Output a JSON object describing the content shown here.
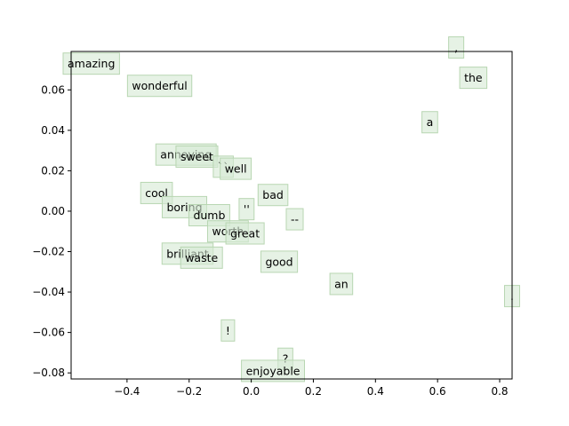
{
  "chart_data": {
    "type": "scatter",
    "title": "",
    "xlabel": "",
    "ylabel": "",
    "xlim": [
      -0.58,
      0.84
    ],
    "ylim": [
      -0.083,
      0.079
    ],
    "xticks": [
      "−0.4",
      "−0.2",
      "0.0",
      "0.2",
      "0.4",
      "0.6",
      "0.8"
    ],
    "xtick_values": [
      -0.4,
      -0.2,
      0.0,
      0.2,
      0.4,
      0.6,
      0.8
    ],
    "yticks": [
      "−0.08",
      "−0.06",
      "−0.04",
      "−0.02",
      "0.00",
      "0.02",
      "0.04",
      "0.06"
    ],
    "ytick_values": [
      -0.08,
      -0.06,
      -0.04,
      -0.02,
      0.0,
      0.02,
      0.04,
      0.06
    ],
    "grid": false,
    "box_color": "#d6ead3",
    "points": [
      {
        "label": "amazing",
        "x": -0.515,
        "y": 0.073
      },
      {
        "label": "wonderful",
        "x": -0.295,
        "y": 0.062
      },
      {
        "label": ",",
        "x": 0.66,
        "y": 0.081
      },
      {
        "label": "the",
        "x": 0.715,
        "y": 0.066
      },
      {
        "label": "a",
        "x": 0.575,
        "y": 0.044
      },
      {
        "label": "annoying",
        "x": -0.21,
        "y": 0.028
      },
      {
        "label": "sweet",
        "x": -0.175,
        "y": 0.027
      },
      {
        "label": "``",
        "x": -0.09,
        "y": 0.022
      },
      {
        "label": "well",
        "x": -0.05,
        "y": 0.021
      },
      {
        "label": "cool",
        "x": -0.305,
        "y": 0.009
      },
      {
        "label": "bad",
        "x": 0.07,
        "y": 0.008
      },
      {
        "label": "boring",
        "x": -0.215,
        "y": 0.002
      },
      {
        "label": "''",
        "x": -0.015,
        "y": 0.001
      },
      {
        "label": "dumb",
        "x": -0.135,
        "y": -0.002
      },
      {
        "label": "--",
        "x": 0.14,
        "y": -0.004
      },
      {
        "label": "worth",
        "x": -0.075,
        "y": -0.01
      },
      {
        "label": "great",
        "x": -0.02,
        "y": -0.011
      },
      {
        "label": "brilliant",
        "x": -0.205,
        "y": -0.021
      },
      {
        "label": "waste",
        "x": -0.16,
        "y": -0.023
      },
      {
        "label": "good",
        "x": 0.09,
        "y": -0.025
      },
      {
        "label": "an",
        "x": 0.29,
        "y": -0.036
      },
      {
        "label": ".",
        "x": 0.84,
        "y": -0.042
      },
      {
        "label": "!",
        "x": -0.075,
        "y": -0.059
      },
      {
        "label": "?",
        "x": 0.11,
        "y": -0.073
      },
      {
        "label": "enjoyable",
        "x": 0.07,
        "y": -0.079
      }
    ]
  }
}
